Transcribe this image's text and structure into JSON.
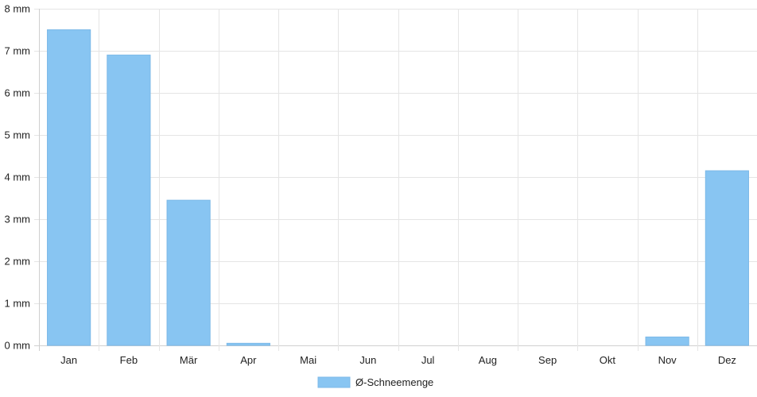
{
  "chart_data": {
    "type": "bar",
    "categories": [
      "Jan",
      "Feb",
      "Mär",
      "Apr",
      "Mai",
      "Jun",
      "Jul",
      "Aug",
      "Sep",
      "Okt",
      "Nov",
      "Dez"
    ],
    "series": [
      {
        "name": "Ø-Schneemenge",
        "values": [
          7.5,
          6.9,
          3.45,
          0.05,
          0,
          0,
          0,
          0,
          0,
          0,
          0.2,
          4.15
        ]
      }
    ],
    "y_ticks": [
      "0 mm",
      "1 mm",
      "2 mm",
      "3 mm",
      "4 mm",
      "5 mm",
      "6 mm",
      "7 mm",
      "8 mm"
    ],
    "ylim": [
      0,
      8
    ],
    "unit": "mm",
    "grid": true,
    "legend_position": "bottom",
    "colors": {
      "bar": "#88c5f2",
      "bar_border": "#7cb9e8",
      "grid": "#e5e5e5",
      "axis": "#cfcfcf"
    }
  }
}
